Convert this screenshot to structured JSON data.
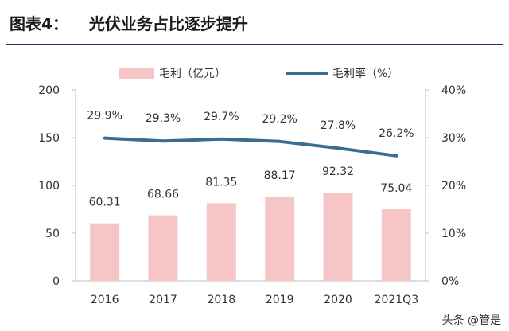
{
  "figure": {
    "label": "图表4：",
    "title": "光伏业务占比逐步提升"
  },
  "watermark": "头条 @管是",
  "chart_data": {
    "type": "bar+line",
    "categories": [
      "2016",
      "2017",
      "2018",
      "2019",
      "2020",
      "2021Q3"
    ],
    "series": [
      {
        "name": "毛利（亿元）",
        "type": "bar",
        "axis": "left",
        "values": [
          60.31,
          68.66,
          81.35,
          88.17,
          92.32,
          75.04
        ],
        "labels": [
          "60.31",
          "68.66",
          "81.35",
          "88.17",
          "92.32",
          "75.04"
        ],
        "color": "#f6c6c6"
      },
      {
        "name": "毛利率（%）",
        "type": "line",
        "axis": "right",
        "values": [
          29.9,
          29.3,
          29.7,
          29.2,
          27.8,
          26.2
        ],
        "labels": [
          "29.9%",
          "29.3%",
          "29.7%",
          "29.2%",
          "27.8%",
          "26.2%"
        ],
        "color": "#3a6e91"
      }
    ],
    "left_axis": {
      "ylim": [
        0,
        200
      ],
      "ticks": [
        "0",
        "50",
        "100",
        "150",
        "200"
      ]
    },
    "right_axis": {
      "ylim": [
        0,
        40
      ],
      "ticks": [
        "0%",
        "10%",
        "20%",
        "30%",
        "40%"
      ]
    },
    "legend_position": "top",
    "grid": false
  }
}
